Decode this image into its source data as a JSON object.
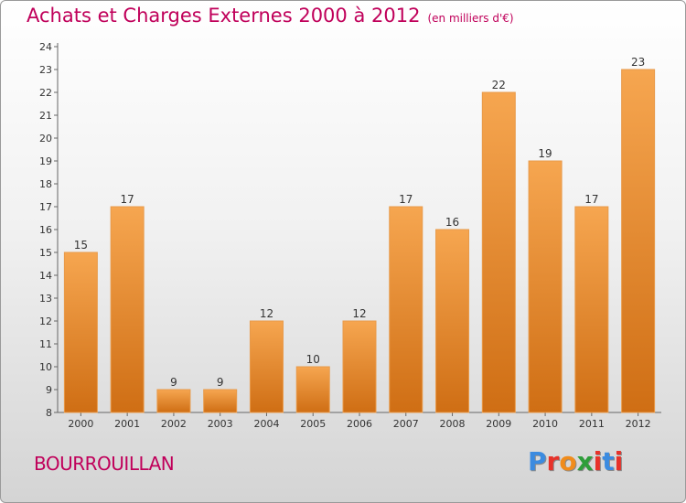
{
  "header": {
    "title": "Achats et Charges Externes 2000 à 2012",
    "unit": "(en milliers d'€)"
  },
  "footer": {
    "town": "BOURROUILLAN",
    "brand": "Proxiti"
  },
  "brand_colors": [
    "#3b8be0",
    "#e8322a",
    "#f08c1c",
    "#2e9e3a",
    "#e8322a",
    "#3b8be0",
    "#e8322a"
  ],
  "chart_data": {
    "type": "bar",
    "title": "Achats et Charges Externes 2000 à 2012",
    "categories": [
      "2000",
      "2001",
      "2002",
      "2003",
      "2004",
      "2005",
      "2006",
      "2007",
      "2008",
      "2009",
      "2010",
      "2011",
      "2012"
    ],
    "values": [
      15,
      17,
      9,
      9,
      12,
      10,
      12,
      17,
      16,
      22,
      19,
      17,
      23
    ],
    "xlabel": "",
    "ylabel": "",
    "ylim": [
      8,
      24
    ],
    "yticks": [
      8,
      9,
      10,
      11,
      12,
      13,
      14,
      15,
      16,
      17,
      18,
      19,
      20,
      21,
      22,
      23,
      24
    ],
    "grid": false,
    "bar_color": "#f0902a"
  }
}
